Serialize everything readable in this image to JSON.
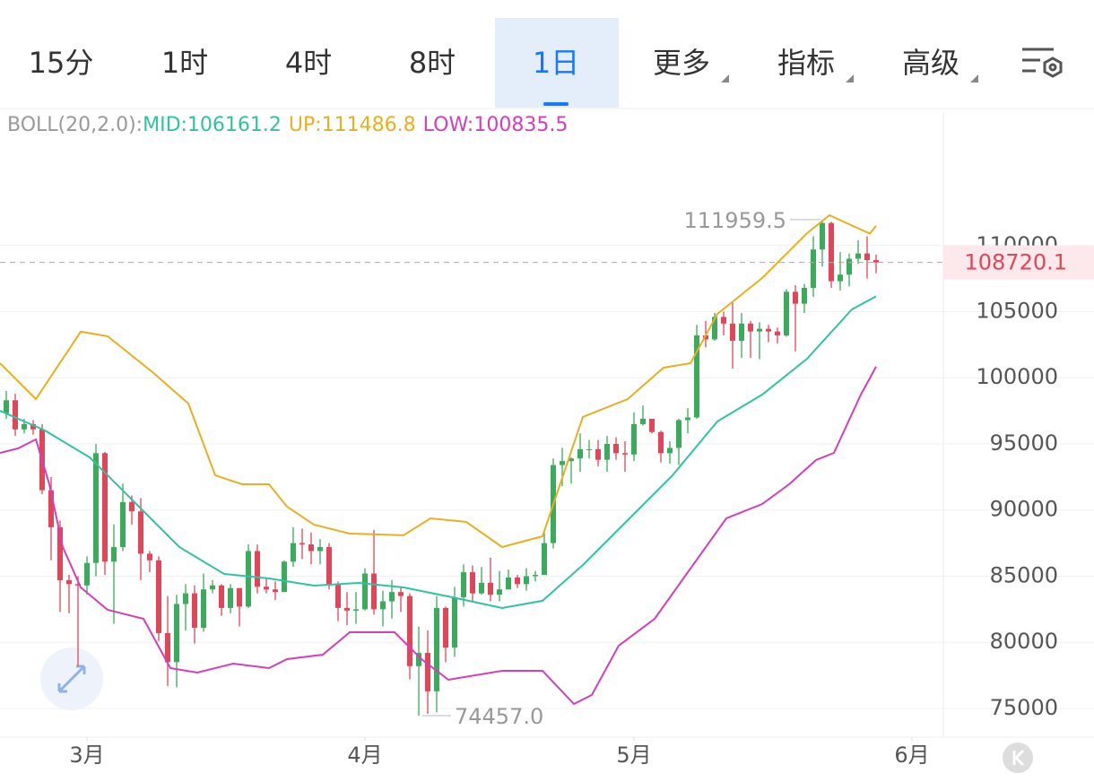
{
  "tabs": [
    {
      "label": "15分"
    },
    {
      "label": "1时"
    },
    {
      "label": "4时"
    },
    {
      "label": "8时"
    },
    {
      "label": "1日"
    },
    {
      "label": "更多",
      "menu": true
    },
    {
      "label": "指标",
      "menu": true
    },
    {
      "label": "高级",
      "menu": true
    }
  ],
  "active_tab": 4,
  "chart_data": {
    "type": "candlestick",
    "indicator": "BOLL(20,2.0):",
    "up_color": "#3aaa5c",
    "down_color": "#e0455a",
    "candles": {
      "open": [
        97300,
        98300,
        96100,
        96500,
        96100,
        91500,
        88700,
        84700,
        84400,
        84300,
        86000,
        94300,
        86100,
        87200,
        90600,
        89900,
        86700,
        86200,
        80700,
        78500,
        82900,
        83700,
        81100,
        84000,
        84300,
        82600,
        84100,
        82700,
        86900,
        84200,
        84000,
        83800,
        86100,
        87500,
        87400,
        86900,
        87200,
        84400,
        82600,
        82400,
        82500,
        85200,
        82500,
        83100,
        83800,
        83500,
        78200,
        79200,
        76300,
        82600,
        79600,
        83400,
        85300,
        83700,
        84500,
        83600,
        84000,
        84900,
        84400,
        85000,
        85100,
        87500,
        93400,
        93700,
        93900,
        94600,
        94600,
        93800,
        95000,
        94300,
        94200,
        96500,
        96900,
        95900,
        94300,
        94700,
        96800,
        97000,
        103200,
        102900,
        104600,
        104100,
        102800,
        104100,
        103500,
        103700,
        103500,
        103200,
        106500,
        105600,
        106800,
        109700,
        111700,
        107300,
        107800,
        109000,
        109400,
        108900
      ],
      "high": [
        99000,
        98800,
        96900,
        96800,
        96500,
        92500,
        89200,
        85100,
        85000,
        86500,
        95000,
        94400,
        88900,
        92000,
        91100,
        90900,
        86900,
        86500,
        83500,
        83600,
        84400,
        84300,
        85200,
        84700,
        84400,
        84400,
        84100,
        87400,
        87400,
        84800,
        84600,
        86200,
        88700,
        88600,
        88300,
        87800,
        87500,
        84600,
        83800,
        83800,
        85600,
        88500,
        83900,
        84700,
        84200,
        83700,
        81200,
        80900,
        83500,
        82700,
        84200,
        85900,
        85800,
        85700,
        86400,
        85400,
        85500,
        85100,
        85600,
        85400,
        88500,
        93900,
        94700,
        94000,
        95800,
        95300,
        95300,
        95600,
        95500,
        95200,
        97400,
        97900,
        96900,
        96000,
        95200,
        96900,
        97700,
        104000,
        104300,
        104900,
        105000,
        105700,
        104900,
        104300,
        104200,
        104000,
        103800,
        106700,
        107000,
        107100,
        110700,
        111959.5,
        111800,
        109500,
        109400,
        110400,
        110700,
        109300
      ],
      "low": [
        96900,
        95600,
        95800,
        95700,
        91200,
        86200,
        82300,
        82200,
        78200,
        83600,
        85000,
        85100,
        81400,
        86900,
        88900,
        84700,
        85300,
        80100,
        76700,
        76600,
        80900,
        79900,
        80800,
        83700,
        82000,
        82200,
        81200,
        82600,
        83700,
        83700,
        83200,
        83800,
        85700,
        86300,
        85900,
        85900,
        84000,
        81600,
        81300,
        81400,
        82400,
        82100,
        81200,
        81800,
        82300,
        77200,
        74457,
        74600,
        74700,
        78500,
        78900,
        82700,
        83100,
        83600,
        83100,
        83100,
        84000,
        84100,
        83900,
        84600,
        85100,
        87100,
        91800,
        92000,
        92900,
        93900,
        93300,
        92900,
        93800,
        92900,
        93700,
        96400,
        95800,
        93600,
        93500,
        93400,
        95800,
        96900,
        102300,
        102800,
        103200,
        100700,
        101500,
        101500,
        101400,
        102700,
        102600,
        103100,
        102000,
        104900,
        106100,
        108400,
        106800,
        106600,
        106900,
        108600,
        107500,
        107900
      ],
      "close": [
        98300,
        96100,
        96500,
        96100,
        91500,
        88700,
        84700,
        84400,
        84300,
        86000,
        94300,
        86100,
        87200,
        90600,
        89900,
        86700,
        86200,
        80700,
        78500,
        82900,
        83700,
        81100,
        84000,
        84300,
        82600,
        84100,
        82700,
        86900,
        84200,
        84000,
        83800,
        86100,
        87500,
        87400,
        86900,
        87200,
        84400,
        82600,
        82400,
        82500,
        85200,
        82500,
        83100,
        83800,
        83500,
        78200,
        79200,
        76300,
        82600,
        79600,
        83400,
        85300,
        83700,
        84500,
        83600,
        84000,
        84900,
        84400,
        85000,
        85100,
        87500,
        93400,
        93700,
        93900,
        94600,
        94600,
        93800,
        95000,
        94300,
        94200,
        96500,
        96900,
        95900,
        94300,
        94700,
        96800,
        97000,
        103200,
        102900,
        104600,
        104100,
        102800,
        104100,
        103500,
        103700,
        103500,
        103200,
        106500,
        105600,
        106800,
        109700,
        111700,
        107300,
        107800,
        109000,
        109400,
        108900,
        108720.1
      ]
    },
    "series": [
      {
        "name": "MID:",
        "color": "#2ec4a2",
        "current": 106161.2,
        "x": [
          -0.7,
          4.3,
          9.3,
          14.3,
          19.3,
          24.3,
          29.3,
          34.3,
          39.3,
          44.3,
          49.3,
          55.3,
          59.8,
          64.3,
          69.3,
          74.3,
          79.3,
          84.3,
          89.3,
          94.3,
          97
        ],
        "values": [
          97510,
          96020,
          93980,
          90590,
          87200,
          85170,
          84830,
          84290,
          84490,
          84150,
          83470,
          82590,
          83140,
          85850,
          89240,
          92630,
          96700,
          98730,
          101440,
          105170,
          106161.2
        ]
      },
      {
        "name": "UP:",
        "color": "#e8b020",
        "current": 111486.8,
        "x": [
          -0.7,
          3.3,
          8.3,
          11.3,
          16.3,
          20.3,
          23.3,
          26.3,
          29.3,
          31.3,
          34.3,
          38.3,
          44.3,
          47.3,
          51.3,
          55.3,
          59.8,
          64.3,
          69.3,
          73.3,
          76.3,
          79.3,
          84.3,
          89.3,
          91.8,
          96.3,
          97
        ],
        "values": [
          101100,
          98390,
          103480,
          103140,
          100430,
          98050,
          92630,
          91950,
          91950,
          90260,
          88900,
          88220,
          88090,
          89370,
          89100,
          87200,
          88020,
          97040,
          98390,
          100760,
          101100,
          104830,
          107540,
          110930,
          112290,
          110900,
          111486.8
        ]
      },
      {
        "name": "LOW:",
        "color": "#d43fb8",
        "current": 100835.5,
        "x": [
          -0.7,
          1.3,
          3.3,
          4.8,
          6.3,
          8.3,
          11.3,
          15.3,
          18.3,
          21.3,
          25.3,
          29.3,
          31.3,
          35.3,
          38.3,
          43.3,
          46.3,
          49.3,
          55.3,
          59.8,
          63.3,
          65.3,
          68.3,
          72.3,
          77.3,
          80.3,
          84.3,
          87.3,
          90.3,
          92.3,
          95.3,
          97
        ],
        "values": [
          94320,
          94660,
          95340,
          91950,
          87200,
          84150,
          82460,
          81780,
          78050,
          77710,
          78390,
          78050,
          78730,
          79070,
          80760,
          80760,
          78730,
          77170,
          77850,
          77850,
          75340,
          76020,
          79750,
          81780,
          86530,
          89370,
          90460,
          91950,
          93780,
          94320,
          98730,
          100835.5
        ]
      }
    ],
    "annotations": [
      {
        "value": 111959.5,
        "index": 91
      },
      {
        "value": {
          "value": 74457,
          "label": "74457.0"
        },
        "index": 46
      }
    ],
    "ylim": [
      72830,
      120085
    ],
    "yticks": [
      75000,
      80000,
      85000,
      90000,
      95000,
      100000,
      105000,
      110000
    ],
    "xlim": [
      -0.7,
      104.5
    ],
    "xticks": [
      {
        "value": 9,
        "label": "3月"
      },
      {
        "value": 40,
        "label": "4月"
      },
      {
        "value": 70,
        "label": "5月"
      },
      {
        "value": 101,
        "label": "6月"
      }
    ],
    "grid": true
  }
}
